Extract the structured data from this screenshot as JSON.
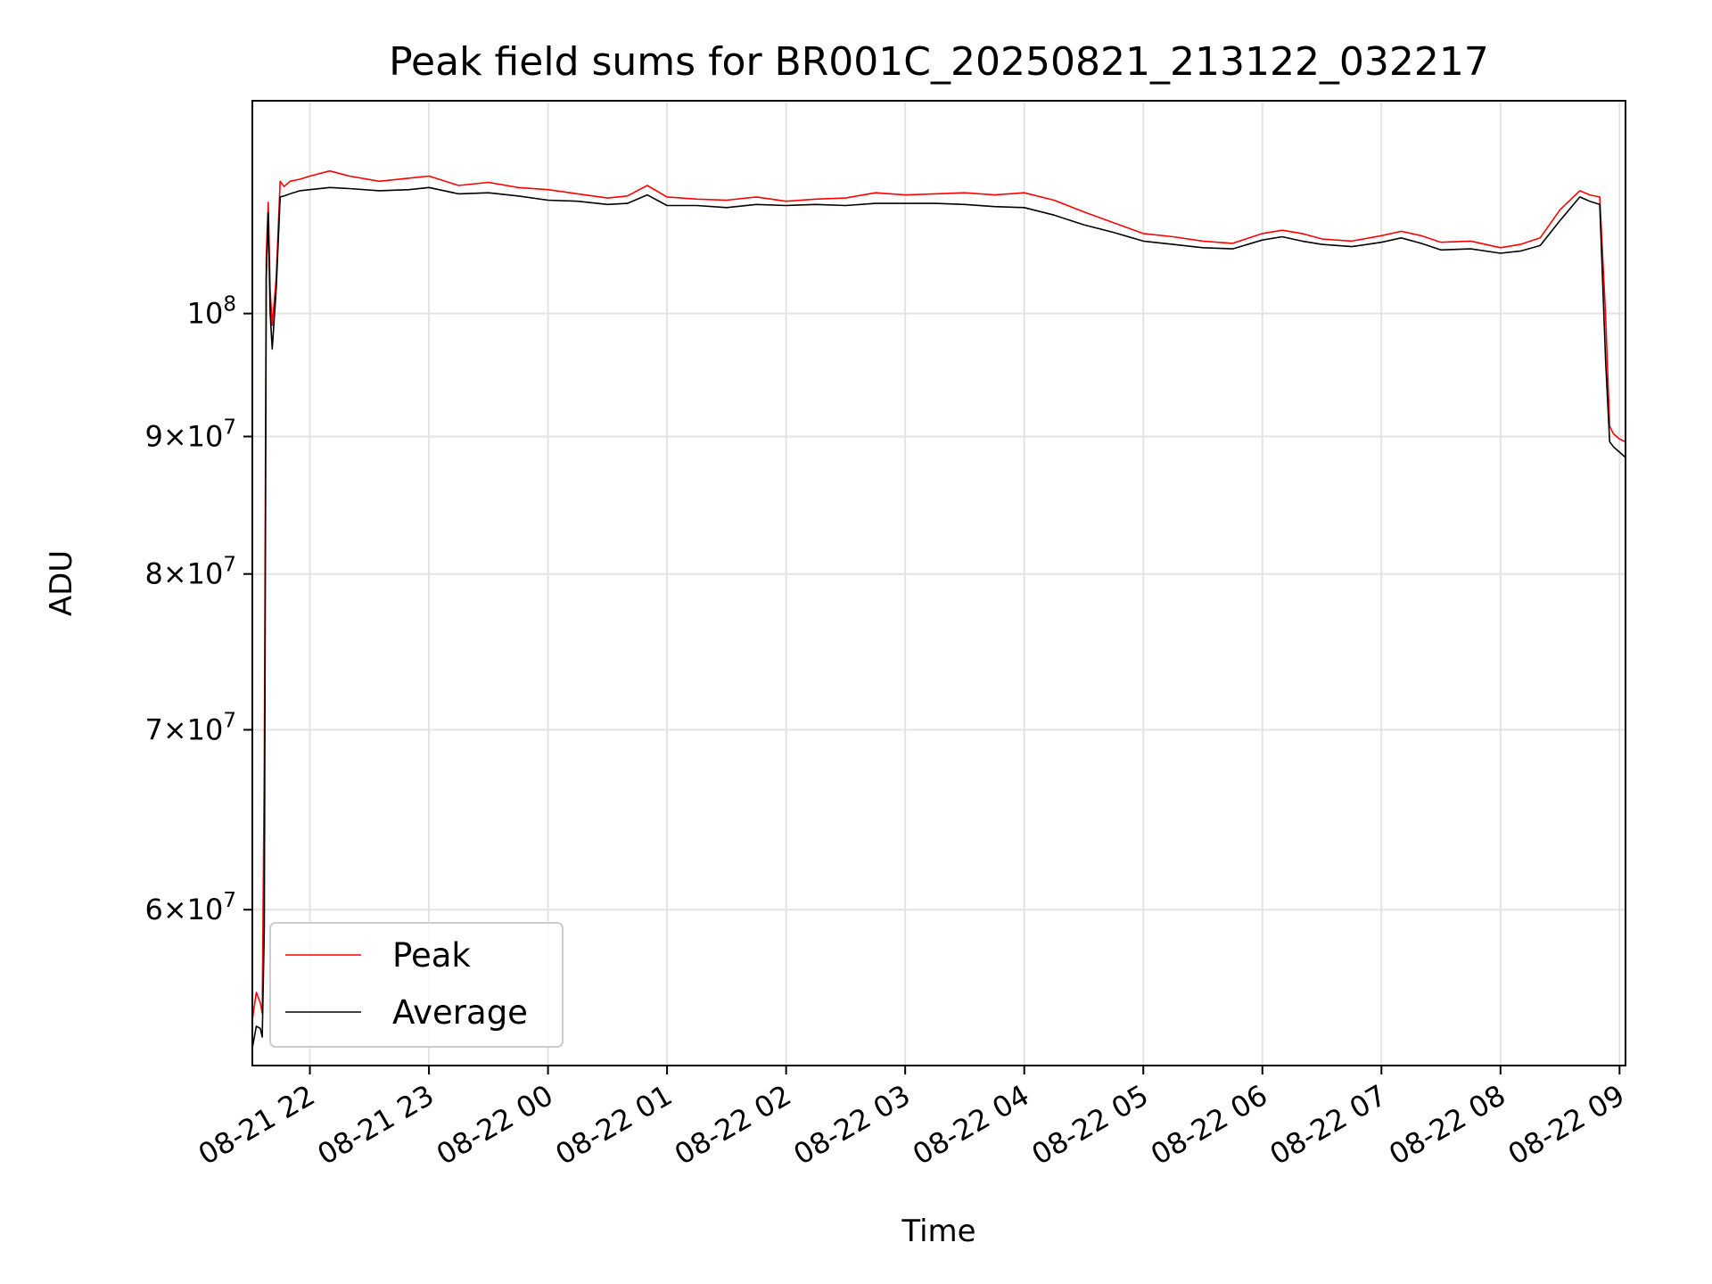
{
  "chart_data": {
    "type": "line",
    "title": "Peak field sums for BR001C_20250821_213122_032217",
    "xlabel": "Time",
    "ylabel": "ADU",
    "yscale": "log",
    "grid": true,
    "legend_position": "lower-left",
    "xlim": [
      "2025-08-21T21:31",
      "2025-08-22T09:03"
    ],
    "ylim": [
      52500000,
      120000000
    ],
    "x_ticks": [
      {
        "at": "2025-08-21T22:00",
        "label": "08-21 22"
      },
      {
        "at": "2025-08-21T23:00",
        "label": "08-21 23"
      },
      {
        "at": "2025-08-22T00:00",
        "label": "08-22 00"
      },
      {
        "at": "2025-08-22T01:00",
        "label": "08-22 01"
      },
      {
        "at": "2025-08-22T02:00",
        "label": "08-22 02"
      },
      {
        "at": "2025-08-22T03:00",
        "label": "08-22 03"
      },
      {
        "at": "2025-08-22T04:00",
        "label": "08-22 04"
      },
      {
        "at": "2025-08-22T05:00",
        "label": "08-22 05"
      },
      {
        "at": "2025-08-22T06:00",
        "label": "08-22 06"
      },
      {
        "at": "2025-08-22T07:00",
        "label": "08-22 07"
      },
      {
        "at": "2025-08-22T08:00",
        "label": "08-22 08"
      },
      {
        "at": "2025-08-22T09:00",
        "label": "08-22 09"
      }
    ],
    "y_ticks": [
      {
        "value": 60000000,
        "mantissa": "6",
        "base": "10",
        "exp": "7"
      },
      {
        "value": 70000000,
        "mantissa": "7",
        "base": "10",
        "exp": "7"
      },
      {
        "value": 80000000,
        "mantissa": "8",
        "base": "10",
        "exp": "7"
      },
      {
        "value": 90000000,
        "mantissa": "9",
        "base": "10",
        "exp": "7"
      },
      {
        "value": 100000000,
        "mantissa": "",
        "base": "10",
        "exp": "8"
      }
    ],
    "series": [
      {
        "name": "Peak",
        "color": "#ff0000",
        "x": [
          "2025-08-21T21:31",
          "2025-08-21T21:33",
          "2025-08-21T21:35",
          "2025-08-21T21:36",
          "2025-08-21T21:37",
          "2025-08-21T21:38",
          "2025-08-21T21:39",
          "2025-08-21T21:40",
          "2025-08-21T21:41",
          "2025-08-21T21:42",
          "2025-08-21T21:43",
          "2025-08-21T21:45",
          "2025-08-21T21:47",
          "2025-08-21T21:50",
          "2025-08-21T21:55",
          "2025-08-21T22:00",
          "2025-08-21T22:10",
          "2025-08-21T22:20",
          "2025-08-21T22:35",
          "2025-08-21T22:50",
          "2025-08-21T23:00",
          "2025-08-21T23:15",
          "2025-08-21T23:30",
          "2025-08-21T23:45",
          "2025-08-22T00:00",
          "2025-08-22T00:15",
          "2025-08-22T00:30",
          "2025-08-22T00:40",
          "2025-08-22T00:50",
          "2025-08-22T01:00",
          "2025-08-22T01:15",
          "2025-08-22T01:30",
          "2025-08-22T01:45",
          "2025-08-22T02:00",
          "2025-08-22T02:15",
          "2025-08-22T02:30",
          "2025-08-22T02:45",
          "2025-08-22T03:00",
          "2025-08-22T03:15",
          "2025-08-22T03:30",
          "2025-08-22T03:45",
          "2025-08-22T04:00",
          "2025-08-22T04:15",
          "2025-08-22T04:30",
          "2025-08-22T04:45",
          "2025-08-22T05:00",
          "2025-08-22T05:15",
          "2025-08-22T05:30",
          "2025-08-22T05:45",
          "2025-08-22T06:00",
          "2025-08-22T06:10",
          "2025-08-22T06:20",
          "2025-08-22T06:30",
          "2025-08-22T06:45",
          "2025-08-22T07:00",
          "2025-08-22T07:10",
          "2025-08-22T07:20",
          "2025-08-22T07:30",
          "2025-08-22T07:45",
          "2025-08-22T08:00",
          "2025-08-22T08:10",
          "2025-08-22T08:20",
          "2025-08-22T08:30",
          "2025-08-22T08:40",
          "2025-08-22T08:45",
          "2025-08-22T08:50",
          "2025-08-22T08:53",
          "2025-08-22T08:55",
          "2025-08-22T08:57",
          "2025-08-22T09:00",
          "2025-08-22T09:03"
        ],
        "values": [
          54600000,
          55900000,
          55400000,
          54900000,
          68000000,
          105000000,
          110000000,
          102000000,
          99000000,
          101000000,
          103000000,
          112000000,
          111500000,
          112000000,
          112200000,
          112500000,
          113000000,
          112500000,
          112000000,
          112300000,
          112500000,
          111600000,
          111900000,
          111400000,
          111200000,
          110800000,
          110400000,
          110600000,
          111600000,
          110500000,
          110300000,
          110200000,
          110500000,
          110100000,
          110300000,
          110400000,
          110900000,
          110700000,
          110800000,
          110900000,
          110700000,
          110900000,
          110200000,
          109100000,
          108100000,
          107100000,
          106800000,
          106400000,
          106200000,
          107100000,
          107400000,
          107100000,
          106600000,
          106400000,
          106900000,
          107300000,
          106900000,
          106300000,
          106400000,
          105800000,
          106100000,
          106700000,
          109300000,
          111100000,
          110700000,
          110500000,
          99800000,
          90800000,
          90200000,
          89800000,
          89600000
        ]
      },
      {
        "name": "Average",
        "color": "#000000",
        "x": [
          "2025-08-21T21:31",
          "2025-08-21T21:33",
          "2025-08-21T21:35",
          "2025-08-21T21:36",
          "2025-08-21T21:37",
          "2025-08-21T21:38",
          "2025-08-21T21:39",
          "2025-08-21T21:40",
          "2025-08-21T21:41",
          "2025-08-21T21:42",
          "2025-08-21T21:43",
          "2025-08-21T21:45",
          "2025-08-21T21:47",
          "2025-08-21T21:50",
          "2025-08-21T21:55",
          "2025-08-21T22:00",
          "2025-08-21T22:10",
          "2025-08-21T22:20",
          "2025-08-21T22:35",
          "2025-08-21T22:50",
          "2025-08-21T23:00",
          "2025-08-21T23:15",
          "2025-08-21T23:30",
          "2025-08-21T23:45",
          "2025-08-22T00:00",
          "2025-08-22T00:15",
          "2025-08-22T00:30",
          "2025-08-22T00:40",
          "2025-08-22T00:50",
          "2025-08-22T01:00",
          "2025-08-22T01:15",
          "2025-08-22T01:30",
          "2025-08-22T01:45",
          "2025-08-22T02:00",
          "2025-08-22T02:15",
          "2025-08-22T02:30",
          "2025-08-22T02:45",
          "2025-08-22T03:00",
          "2025-08-22T03:15",
          "2025-08-22T03:30",
          "2025-08-22T03:45",
          "2025-08-22T04:00",
          "2025-08-22T04:15",
          "2025-08-22T04:30",
          "2025-08-22T04:45",
          "2025-08-22T05:00",
          "2025-08-22T05:15",
          "2025-08-22T05:30",
          "2025-08-22T05:45",
          "2025-08-22T06:00",
          "2025-08-22T06:10",
          "2025-08-22T06:20",
          "2025-08-22T06:30",
          "2025-08-22T06:45",
          "2025-08-22T07:00",
          "2025-08-22T07:10",
          "2025-08-22T07:20",
          "2025-08-22T07:30",
          "2025-08-22T07:45",
          "2025-08-22T08:00",
          "2025-08-22T08:10",
          "2025-08-22T08:20",
          "2025-08-22T08:30",
          "2025-08-22T08:40",
          "2025-08-22T08:45",
          "2025-08-22T08:50",
          "2025-08-22T08:53",
          "2025-08-22T08:55",
          "2025-08-22T08:57",
          "2025-08-22T09:00",
          "2025-08-22T09:03"
        ],
        "values": [
          53300000,
          54300000,
          54200000,
          53800000,
          59000000,
          103000000,
          109000000,
          100000000,
          97000000,
          99500000,
          102000000,
          110500000,
          110600000,
          110800000,
          111100000,
          111200000,
          111400000,
          111300000,
          111100000,
          111200000,
          111400000,
          110800000,
          110900000,
          110600000,
          110200000,
          110100000,
          109800000,
          109900000,
          110700000,
          109700000,
          109700000,
          109500000,
          109800000,
          109700000,
          109800000,
          109700000,
          109900000,
          109900000,
          109900000,
          109800000,
          109600000,
          109500000,
          108800000,
          107900000,
          107200000,
          106400000,
          106100000,
          105800000,
          105700000,
          106500000,
          106800000,
          106400000,
          106100000,
          105900000,
          106300000,
          106700000,
          106200000,
          105600000,
          105700000,
          105300000,
          105500000,
          106000000,
          108300000,
          110500000,
          110100000,
          109800000,
          96000000,
          89600000,
          89200000,
          88800000,
          88400000
        ]
      }
    ]
  }
}
